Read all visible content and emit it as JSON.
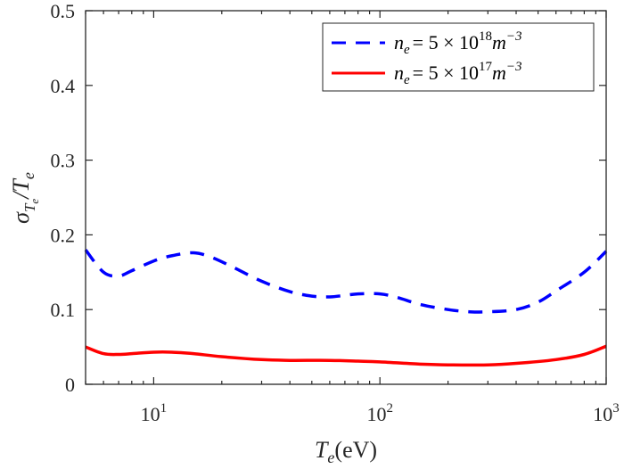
{
  "chart_data": {
    "type": "line",
    "xscale": "log",
    "xlim": [
      5,
      1000
    ],
    "ylim": [
      0,
      0.5
    ],
    "x_ticks": [
      {
        "value": 10,
        "base": "10",
        "exp": "1"
      },
      {
        "value": 100,
        "base": "10",
        "exp": "2"
      },
      {
        "value": 1000,
        "base": "10",
        "exp": "3"
      }
    ],
    "y_ticks": [
      {
        "value": 0,
        "label": "0"
      },
      {
        "value": 0.1,
        "label": "0.1"
      },
      {
        "value": 0.2,
        "label": "0.2"
      },
      {
        "value": 0.3,
        "label": "0.3"
      },
      {
        "value": 0.4,
        "label": "0.4"
      },
      {
        "value": 0.5,
        "label": "0.5"
      }
    ],
    "xlabel": {
      "main": "T",
      "sub": "e",
      "unit": "(eV)"
    },
    "ylabel": {
      "sigma": "σ",
      "sub": "T",
      "subsub": "e",
      "slash": "/T",
      "tail": "e"
    },
    "grid": false,
    "legend_position": "top-right",
    "series": [
      {
        "name": "n_e = 5 × 10^18 m^-3",
        "legend": {
          "n": "n",
          "e": "e",
          "eq": "= 5 × 10",
          "exp": "18",
          "m": "m",
          "mexp": "−3"
        },
        "color": "#0000ff",
        "style": "dashed",
        "x": [
          5,
          6,
          7,
          8,
          10,
          12,
          15,
          18,
          22,
          30,
          40,
          50,
          60,
          70,
          80,
          100,
          120,
          150,
          200,
          250,
          300,
          400,
          500,
          600,
          800,
          1000
        ],
        "y": [
          0.18,
          0.15,
          0.145,
          0.152,
          0.165,
          0.172,
          0.176,
          0.17,
          0.158,
          0.138,
          0.124,
          0.118,
          0.117,
          0.119,
          0.121,
          0.121,
          0.116,
          0.107,
          0.1,
          0.097,
          0.097,
          0.1,
          0.11,
          0.125,
          0.15,
          0.178
        ]
      },
      {
        "name": "n_e = 5 × 10^17 m^-3",
        "legend": {
          "n": "n",
          "e": "e",
          "eq": "= 5 × 10",
          "exp": "17",
          "m": "m",
          "mexp": "−3"
        },
        "color": "#ff0000",
        "style": "solid",
        "x": [
          5,
          6,
          7,
          8,
          10,
          12,
          15,
          20,
          30,
          40,
          60,
          80,
          100,
          150,
          200,
          300,
          400,
          600,
          800,
          1000
        ],
        "y": [
          0.05,
          0.041,
          0.04,
          0.041,
          0.043,
          0.043,
          0.041,
          0.037,
          0.033,
          0.032,
          0.032,
          0.031,
          0.03,
          0.027,
          0.026,
          0.026,
          0.028,
          0.033,
          0.04,
          0.051
        ]
      }
    ]
  }
}
